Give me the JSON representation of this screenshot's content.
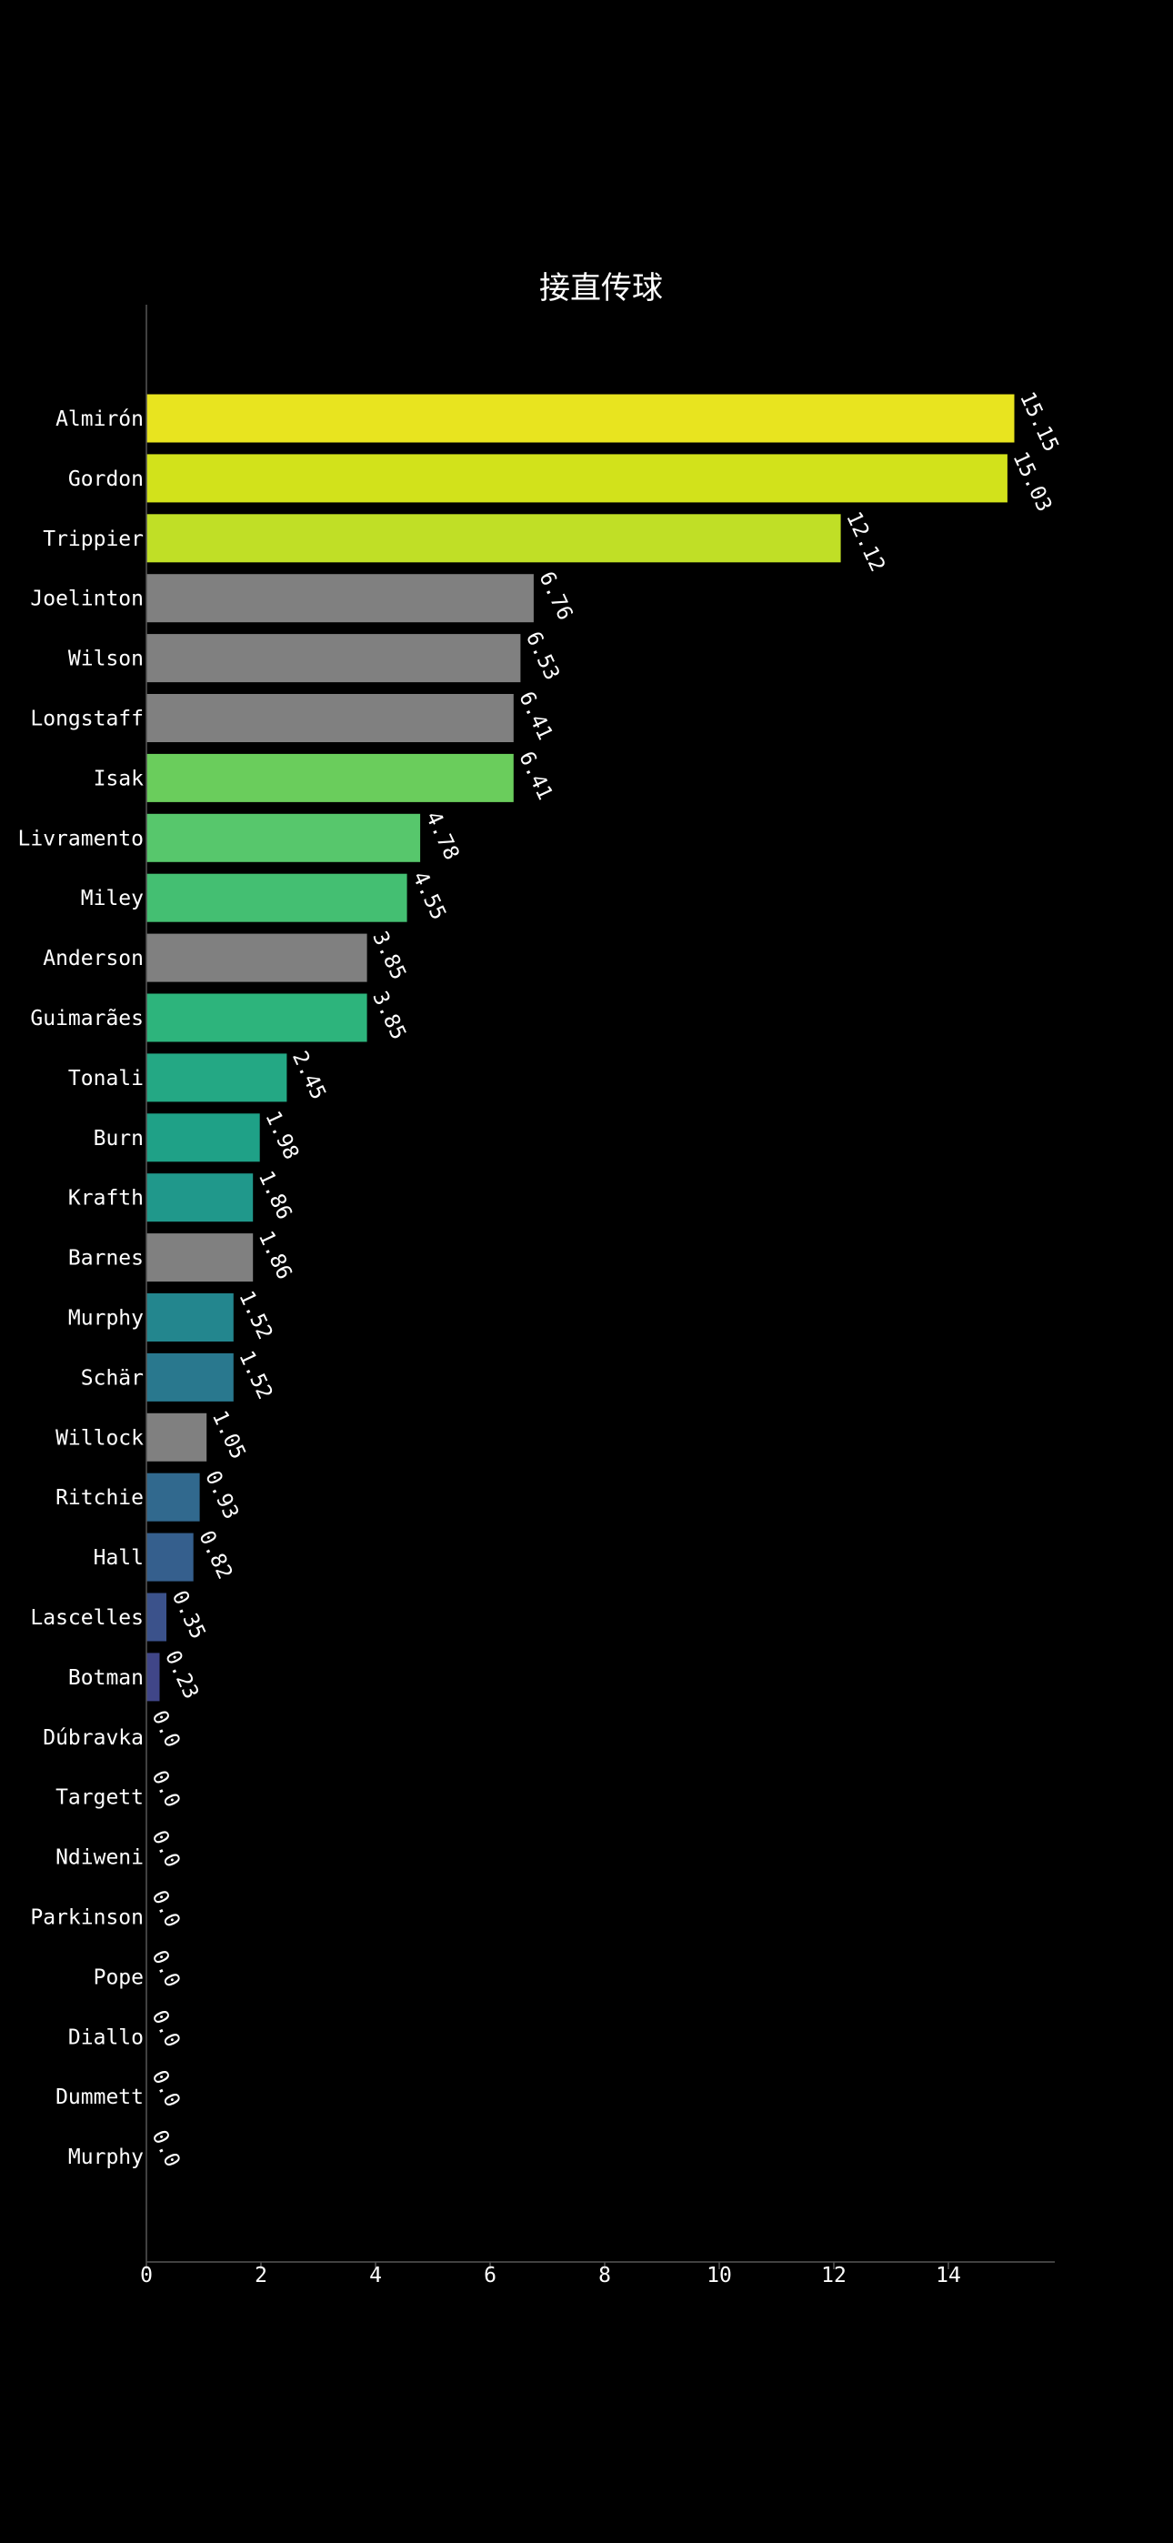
{
  "chart_data": {
    "type": "bar",
    "orientation": "horizontal",
    "title": "接直传球",
    "xlabel": "",
    "ylabel": "",
    "xlim": [
      0,
      15.9
    ],
    "xticks": [
      0,
      2,
      4,
      6,
      8,
      10,
      12,
      14
    ],
    "grid": false,
    "legend": "none",
    "colors": {
      "background": "#000000",
      "axis": "#555555",
      "text": "#ffffff",
      "neutral_bar": "#808080"
    },
    "categories": [
      "Almirón",
      "Gordon",
      "Trippier",
      "Joelinton",
      "Wilson",
      "Longstaff",
      "Isak",
      "Livramento",
      "Miley",
      "Anderson",
      "Guimarães",
      "Tonali",
      "Burn",
      "Krafth",
      "Barnes",
      "Murphy",
      "Schär",
      "Willock",
      "Ritchie",
      "Hall",
      "Lascelles",
      "Botman",
      "Dúbravka",
      "Targett",
      "Ndiweni",
      "Parkinson",
      "Pope",
      "Diallo",
      "Dummett",
      "Murphy"
    ],
    "values": [
      15.15,
      15.03,
      12.12,
      6.76,
      6.53,
      6.41,
      6.41,
      4.78,
      4.55,
      3.85,
      3.85,
      2.45,
      1.98,
      1.86,
      1.86,
      1.52,
      1.52,
      1.05,
      0.93,
      0.82,
      0.35,
      0.23,
      0.0,
      0.0,
      0.0,
      0.0,
      0.0,
      0.0,
      0.0,
      0.0
    ],
    "value_labels": [
      "15.15",
      "15.03",
      "12.12",
      "6.76",
      "6.53",
      "6.41",
      "6.41",
      "4.78",
      "4.55",
      "3.85",
      "3.85",
      "2.45",
      "1.98",
      "1.86",
      "1.86",
      "1.52",
      "1.52",
      "1.05",
      "0.93",
      "0.82",
      "0.35",
      "0.23",
      "0.0",
      "0.0",
      "0.0",
      "0.0",
      "0.0",
      "0.0",
      "0.0",
      "0.0"
    ],
    "bar_colors": [
      "#e8e41f",
      "#d2e21b",
      "#c0df26",
      "#808080",
      "#808080",
      "#808080",
      "#6acd5c",
      "#57c76c",
      "#44bf72",
      "#808080",
      "#2db47c",
      "#24a884",
      "#1fa187",
      "#20988b",
      "#808080",
      "#23868e",
      "#29788e",
      "#808080",
      "#31698e",
      "#355f8d",
      "#3b528b",
      "#404688",
      "#481a6c",
      "#481a6c",
      "#481a6c",
      "#481a6c",
      "#481a6c",
      "#481a6c",
      "#481a6c",
      "#481a6c"
    ]
  }
}
